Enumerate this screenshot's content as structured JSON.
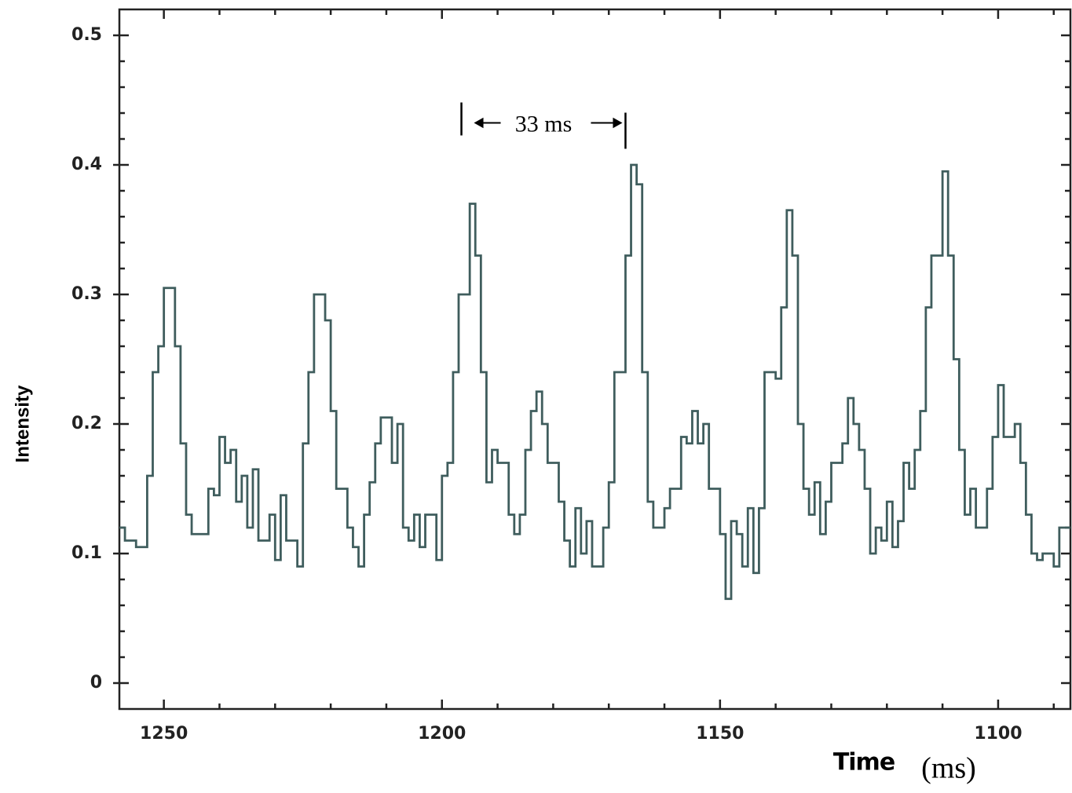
{
  "chart_data": {
    "type": "line",
    "step": true,
    "y_label": "Intensity",
    "x_label": "Time",
    "x_unit": "(ms)",
    "annotation": {
      "text": "33 ms",
      "x_start": 1196.5,
      "x_end": 1167,
      "y": 0.43
    },
    "xlim": [
      1258,
      1087
    ],
    "ylim": [
      -0.02,
      0.52
    ],
    "xticks": [
      1250,
      1200,
      1150,
      1100
    ],
    "yticks": [
      0,
      0.1,
      0.2,
      0.3,
      0.4,
      0.5
    ],
    "color": "#3f5d5d",
    "x": [
      1258,
      1257,
      1255,
      1253,
      1252,
      1251,
      1250,
      1248,
      1247,
      1246,
      1245,
      1242,
      1241,
      1240,
      1239,
      1238,
      1237,
      1236,
      1235,
      1234,
      1233,
      1231,
      1230,
      1229,
      1228,
      1226,
      1225,
      1224,
      1223,
      1221,
      1220,
      1219,
      1217,
      1216,
      1215,
      1214,
      1213,
      1212,
      1211,
      1209,
      1208,
      1207,
      1206,
      1205,
      1204,
      1203,
      1201,
      1200,
      1199,
      1198,
      1197,
      1195,
      1194,
      1193,
      1192,
      1191,
      1190,
      1188,
      1187,
      1186,
      1185,
      1184,
      1183,
      1182,
      1181,
      1179,
      1178,
      1177,
      1176,
      1175,
      1174,
      1173,
      1171,
      1170,
      1169,
      1167,
      1166,
      1165,
      1164,
      1163,
      1162,
      1160,
      1159,
      1157,
      1156,
      1155,
      1154,
      1153,
      1152,
      1150,
      1149,
      1148,
      1147,
      1146,
      1145,
      1144,
      1143,
      1142,
      1140,
      1139,
      1138,
      1137,
      1136,
      1135,
      1134,
      1133,
      1132,
      1131,
      1130,
      1128,
      1127,
      1126,
      1125,
      1124,
      1123,
      1122,
      1121,
      1120,
      1119,
      1118,
      1117,
      1116,
      1115,
      1114,
      1113,
      1112,
      1110,
      1109,
      1108,
      1107,
      1106,
      1105,
      1104,
      1102,
      1101,
      1100,
      1099,
      1097,
      1096,
      1095,
      1094,
      1093,
      1092,
      1090,
      1089
    ],
    "values": [
      0.12,
      0.11,
      0.105,
      0.16,
      0.24,
      0.26,
      0.305,
      0.26,
      0.185,
      0.13,
      0.115,
      0.15,
      0.145,
      0.19,
      0.17,
      0.18,
      0.14,
      0.16,
      0.12,
      0.165,
      0.11,
      0.13,
      0.095,
      0.145,
      0.11,
      0.09,
      0.185,
      0.24,
      0.3,
      0.28,
      0.21,
      0.15,
      0.12,
      0.105,
      0.09,
      0.13,
      0.155,
      0.185,
      0.205,
      0.17,
      0.2,
      0.12,
      0.11,
      0.13,
      0.105,
      0.13,
      0.095,
      0.16,
      0.17,
      0.24,
      0.3,
      0.37,
      0.33,
      0.24,
      0.155,
      0.18,
      0.17,
      0.13,
      0.115,
      0.13,
      0.18,
      0.21,
      0.225,
      0.2,
      0.17,
      0.14,
      0.11,
      0.09,
      0.135,
      0.1,
      0.125,
      0.09,
      0.12,
      0.155,
      0.24,
      0.33,
      0.4,
      0.385,
      0.24,
      0.14,
      0.12,
      0.135,
      0.15,
      0.19,
      0.185,
      0.21,
      0.185,
      0.2,
      0.15,
      0.115,
      0.065,
      0.125,
      0.115,
      0.09,
      0.135,
      0.085,
      0.135,
      0.24,
      0.235,
      0.29,
      0.365,
      0.33,
      0.2,
      0.15,
      0.13,
      0.155,
      0.115,
      0.14,
      0.17,
      0.185,
      0.22,
      0.2,
      0.18,
      0.15,
      0.1,
      0.12,
      0.11,
      0.14,
      0.105,
      0.125,
      0.17,
      0.15,
      0.18,
      0.21,
      0.29,
      0.33,
      0.395,
      0.33,
      0.25,
      0.18,
      0.13,
      0.15,
      0.12,
      0.15,
      0.19,
      0.23,
      0.19,
      0.2,
      0.17,
      0.13,
      0.1,
      0.095,
      0.1,
      0.09,
      0.12
    ]
  }
}
